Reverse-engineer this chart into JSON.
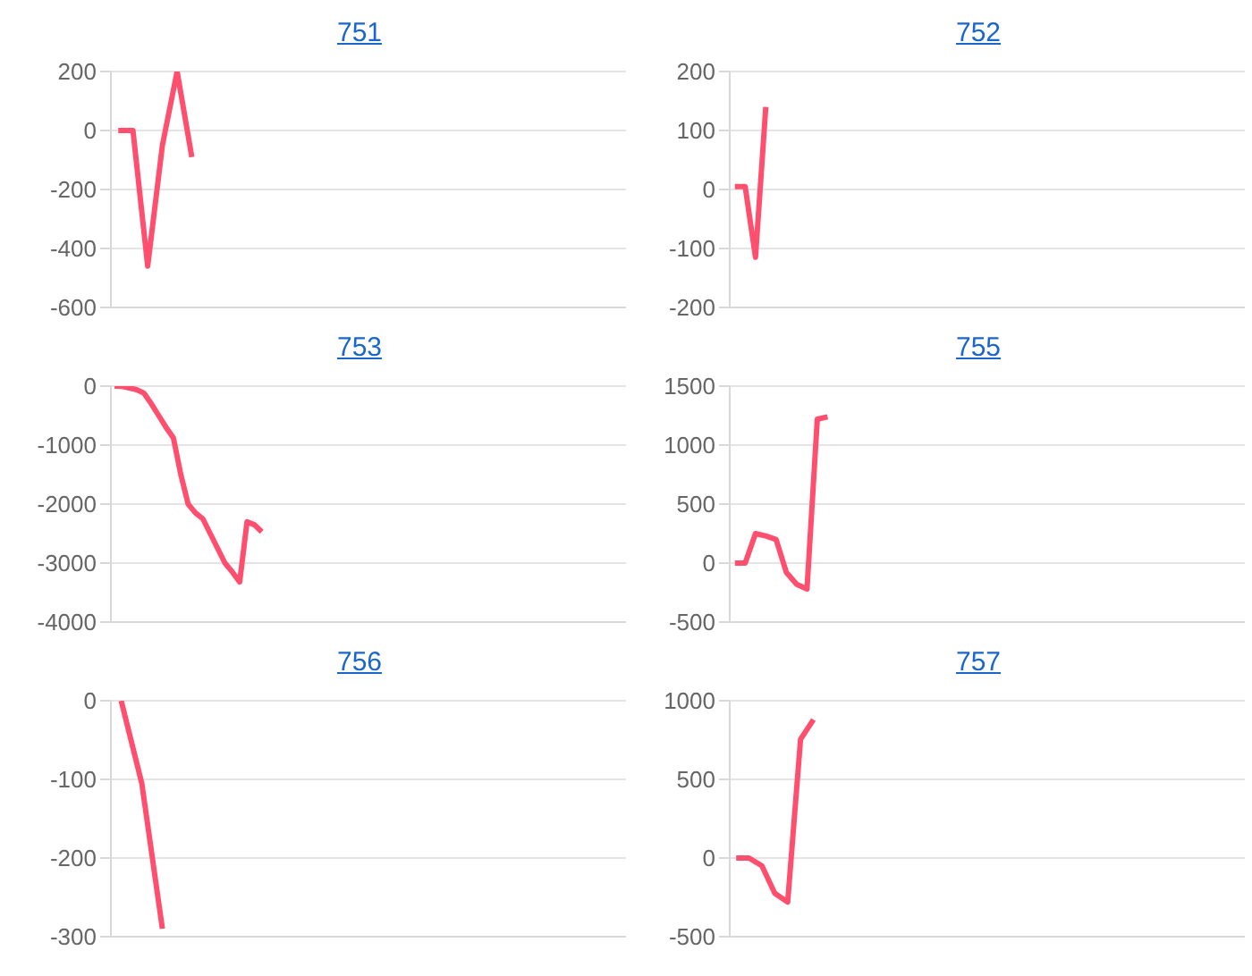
{
  "chart_data": [
    {
      "type": "line",
      "title": "751",
      "tick_labels": "y",
      "grid": "y",
      "marker": "none",
      "ylim": [
        -600,
        200
      ],
      "yticks": [
        -600,
        -400,
        -200,
        0,
        200
      ],
      "categories": [
        null,
        null,
        null,
        null,
        null,
        null,
        null,
        null,
        null,
        null,
        null,
        null,
        null,
        null,
        null,
        null,
        null,
        null,
        null,
        null,
        null,
        null,
        null,
        null,
        null,
        null,
        null,
        null,
        null,
        null,
        null,
        null,
        null,
        null,
        null
      ],
      "series": [
        {
          "color": "#ff4f6e",
          "values": [
            0,
            0,
            -460,
            -50,
            200,
            -90,
            null,
            null,
            null,
            null,
            null,
            null,
            null,
            null,
            null,
            null,
            null,
            null,
            null,
            null,
            null,
            null,
            null,
            null,
            null,
            null,
            null,
            null,
            null,
            null,
            null,
            null,
            null,
            null,
            null
          ]
        }
      ]
    },
    {
      "type": "line",
      "title": "752",
      "tick_labels": "y",
      "grid": "y",
      "marker": "none",
      "ylim": [
        -200,
        200
      ],
      "yticks": [
        -200,
        -100,
        0,
        100,
        200
      ],
      "categories": [
        null,
        null,
        null,
        null,
        null,
        null,
        null,
        null,
        null,
        null,
        null,
        null,
        null,
        null,
        null,
        null,
        null,
        null,
        null,
        null,
        null,
        null,
        null,
        null,
        null,
        null,
        null,
        null,
        null,
        null,
        null,
        null,
        null,
        null,
        null,
        null,
        null,
        null,
        null,
        null,
        null,
        null,
        null,
        null,
        null,
        null,
        null,
        null,
        null,
        null
      ],
      "series": [
        {
          "color": "#ff4f6e",
          "values": [
            5,
            5,
            -115,
            140,
            null,
            null,
            null,
            null,
            null,
            null,
            null,
            null,
            null,
            null,
            null,
            null,
            null,
            null,
            null,
            null,
            null,
            null,
            null,
            null,
            null,
            null,
            null,
            null,
            null,
            null,
            null,
            null,
            null,
            null,
            null,
            null,
            null,
            null,
            null,
            null,
            null,
            null,
            null,
            null,
            null,
            null,
            null,
            null,
            null,
            null
          ]
        }
      ]
    },
    {
      "type": "line",
      "title": "753",
      "tick_labels": "y",
      "grid": "y",
      "marker": "none",
      "ylim": [
        -4000,
        0
      ],
      "yticks": [
        -4000,
        -3000,
        -2000,
        -1000,
        0
      ],
      "categories": [
        null,
        null,
        null,
        null,
        null,
        null,
        null,
        null,
        null,
        null,
        null,
        null,
        null,
        null,
        null,
        null,
        null,
        null,
        null,
        null,
        null,
        null,
        null,
        null,
        null,
        null,
        null,
        null,
        null,
        null,
        null,
        null,
        null,
        null,
        null,
        null,
        null,
        null,
        null,
        null,
        null,
        null,
        null,
        null,
        null,
        null,
        null,
        null,
        null,
        null,
        null,
        null,
        null,
        null,
        null,
        null,
        null,
        null,
        null,
        null,
        null,
        null,
        null,
        null,
        null,
        null,
        null,
        null,
        null,
        null
      ],
      "series": [
        {
          "color": "#ff4f6e",
          "values": [
            0,
            -5,
            -30,
            -60,
            -120,
            -300,
            -500,
            -700,
            -880,
            -1500,
            -2000,
            -2150,
            -2250,
            -2500,
            -2750,
            -3000,
            -3150,
            -3320,
            -2300,
            -2350,
            -2470,
            null,
            null,
            null,
            null,
            null,
            null,
            null,
            null,
            null,
            null,
            null,
            null,
            null,
            null,
            null,
            null,
            null,
            null,
            null,
            null,
            null,
            null,
            null,
            null,
            null,
            null,
            null,
            null,
            null,
            null,
            null,
            null,
            null,
            null,
            null,
            null,
            null,
            null,
            null,
            null,
            null,
            null,
            null,
            null,
            null,
            null,
            null,
            null,
            null
          ]
        }
      ]
    },
    {
      "type": "line",
      "title": "755",
      "tick_labels": "y",
      "grid": "y",
      "marker": "none",
      "ylim": [
        -500,
        1500
      ],
      "yticks": [
        -500,
        0,
        500,
        1000,
        1500
      ],
      "categories": [
        null,
        null,
        null,
        null,
        null,
        null,
        null,
        null,
        null,
        null,
        null,
        null,
        null,
        null,
        null,
        null,
        null,
        null,
        null,
        null,
        null,
        null,
        null,
        null,
        null,
        null,
        null,
        null,
        null,
        null,
        null,
        null,
        null,
        null,
        null,
        null,
        null,
        null,
        null,
        null,
        null,
        null,
        null,
        null,
        null,
        null,
        null,
        null,
        null,
        null
      ],
      "series": [
        {
          "color": "#ff4f6e",
          "values": [
            0,
            0,
            250,
            230,
            200,
            -80,
            -180,
            -220,
            1220,
            1240,
            null,
            null,
            null,
            null,
            null,
            null,
            null,
            null,
            null,
            null,
            null,
            null,
            null,
            null,
            null,
            null,
            null,
            null,
            null,
            null,
            null,
            null,
            null,
            null,
            null,
            null,
            null,
            null,
            null,
            null,
            null,
            null,
            null,
            null,
            null,
            null,
            null,
            null,
            null,
            null
          ]
        }
      ]
    },
    {
      "type": "line",
      "title": "756",
      "tick_labels": "y",
      "grid": "y",
      "marker": "none",
      "ylim": [
        -300,
        0
      ],
      "yticks": [
        -300,
        -200,
        -100,
        0
      ],
      "categories": [
        null,
        null,
        null,
        null,
        null,
        null,
        null,
        null,
        null,
        null,
        null,
        null,
        null,
        null,
        null,
        null,
        null,
        null,
        null,
        null,
        null,
        null,
        null,
        null,
        null
      ],
      "series": [
        {
          "color": "#ff4f6e",
          "values": [
            0,
            -105,
            -290,
            null,
            null,
            null,
            null,
            null,
            null,
            null,
            null,
            null,
            null,
            null,
            null,
            null,
            null,
            null,
            null,
            null,
            null,
            null,
            null,
            null,
            null
          ]
        }
      ]
    },
    {
      "type": "line",
      "title": "757",
      "tick_labels": "y",
      "grid": "y",
      "marker": "none",
      "ylim": [
        -500,
        1000
      ],
      "yticks": [
        -500,
        0,
        500,
        1000
      ],
      "categories": [
        null,
        null,
        null,
        null,
        null,
        null,
        null,
        null,
        null,
        null,
        null,
        null,
        null,
        null,
        null,
        null,
        null,
        null,
        null,
        null,
        null,
        null,
        null,
        null,
        null,
        null,
        null,
        null,
        null,
        null,
        null,
        null,
        null,
        null,
        null,
        null,
        null,
        null,
        null,
        null
      ],
      "series": [
        {
          "color": "#ff4f6e",
          "values": [
            0,
            0,
            -50,
            -225,
            -280,
            755,
            880,
            null,
            null,
            null,
            null,
            null,
            null,
            null,
            null,
            null,
            null,
            null,
            null,
            null,
            null,
            null,
            null,
            null,
            null,
            null,
            null,
            null,
            null,
            null,
            null,
            null,
            null,
            null,
            null,
            null,
            null,
            null,
            null,
            null
          ]
        }
      ]
    }
  ]
}
